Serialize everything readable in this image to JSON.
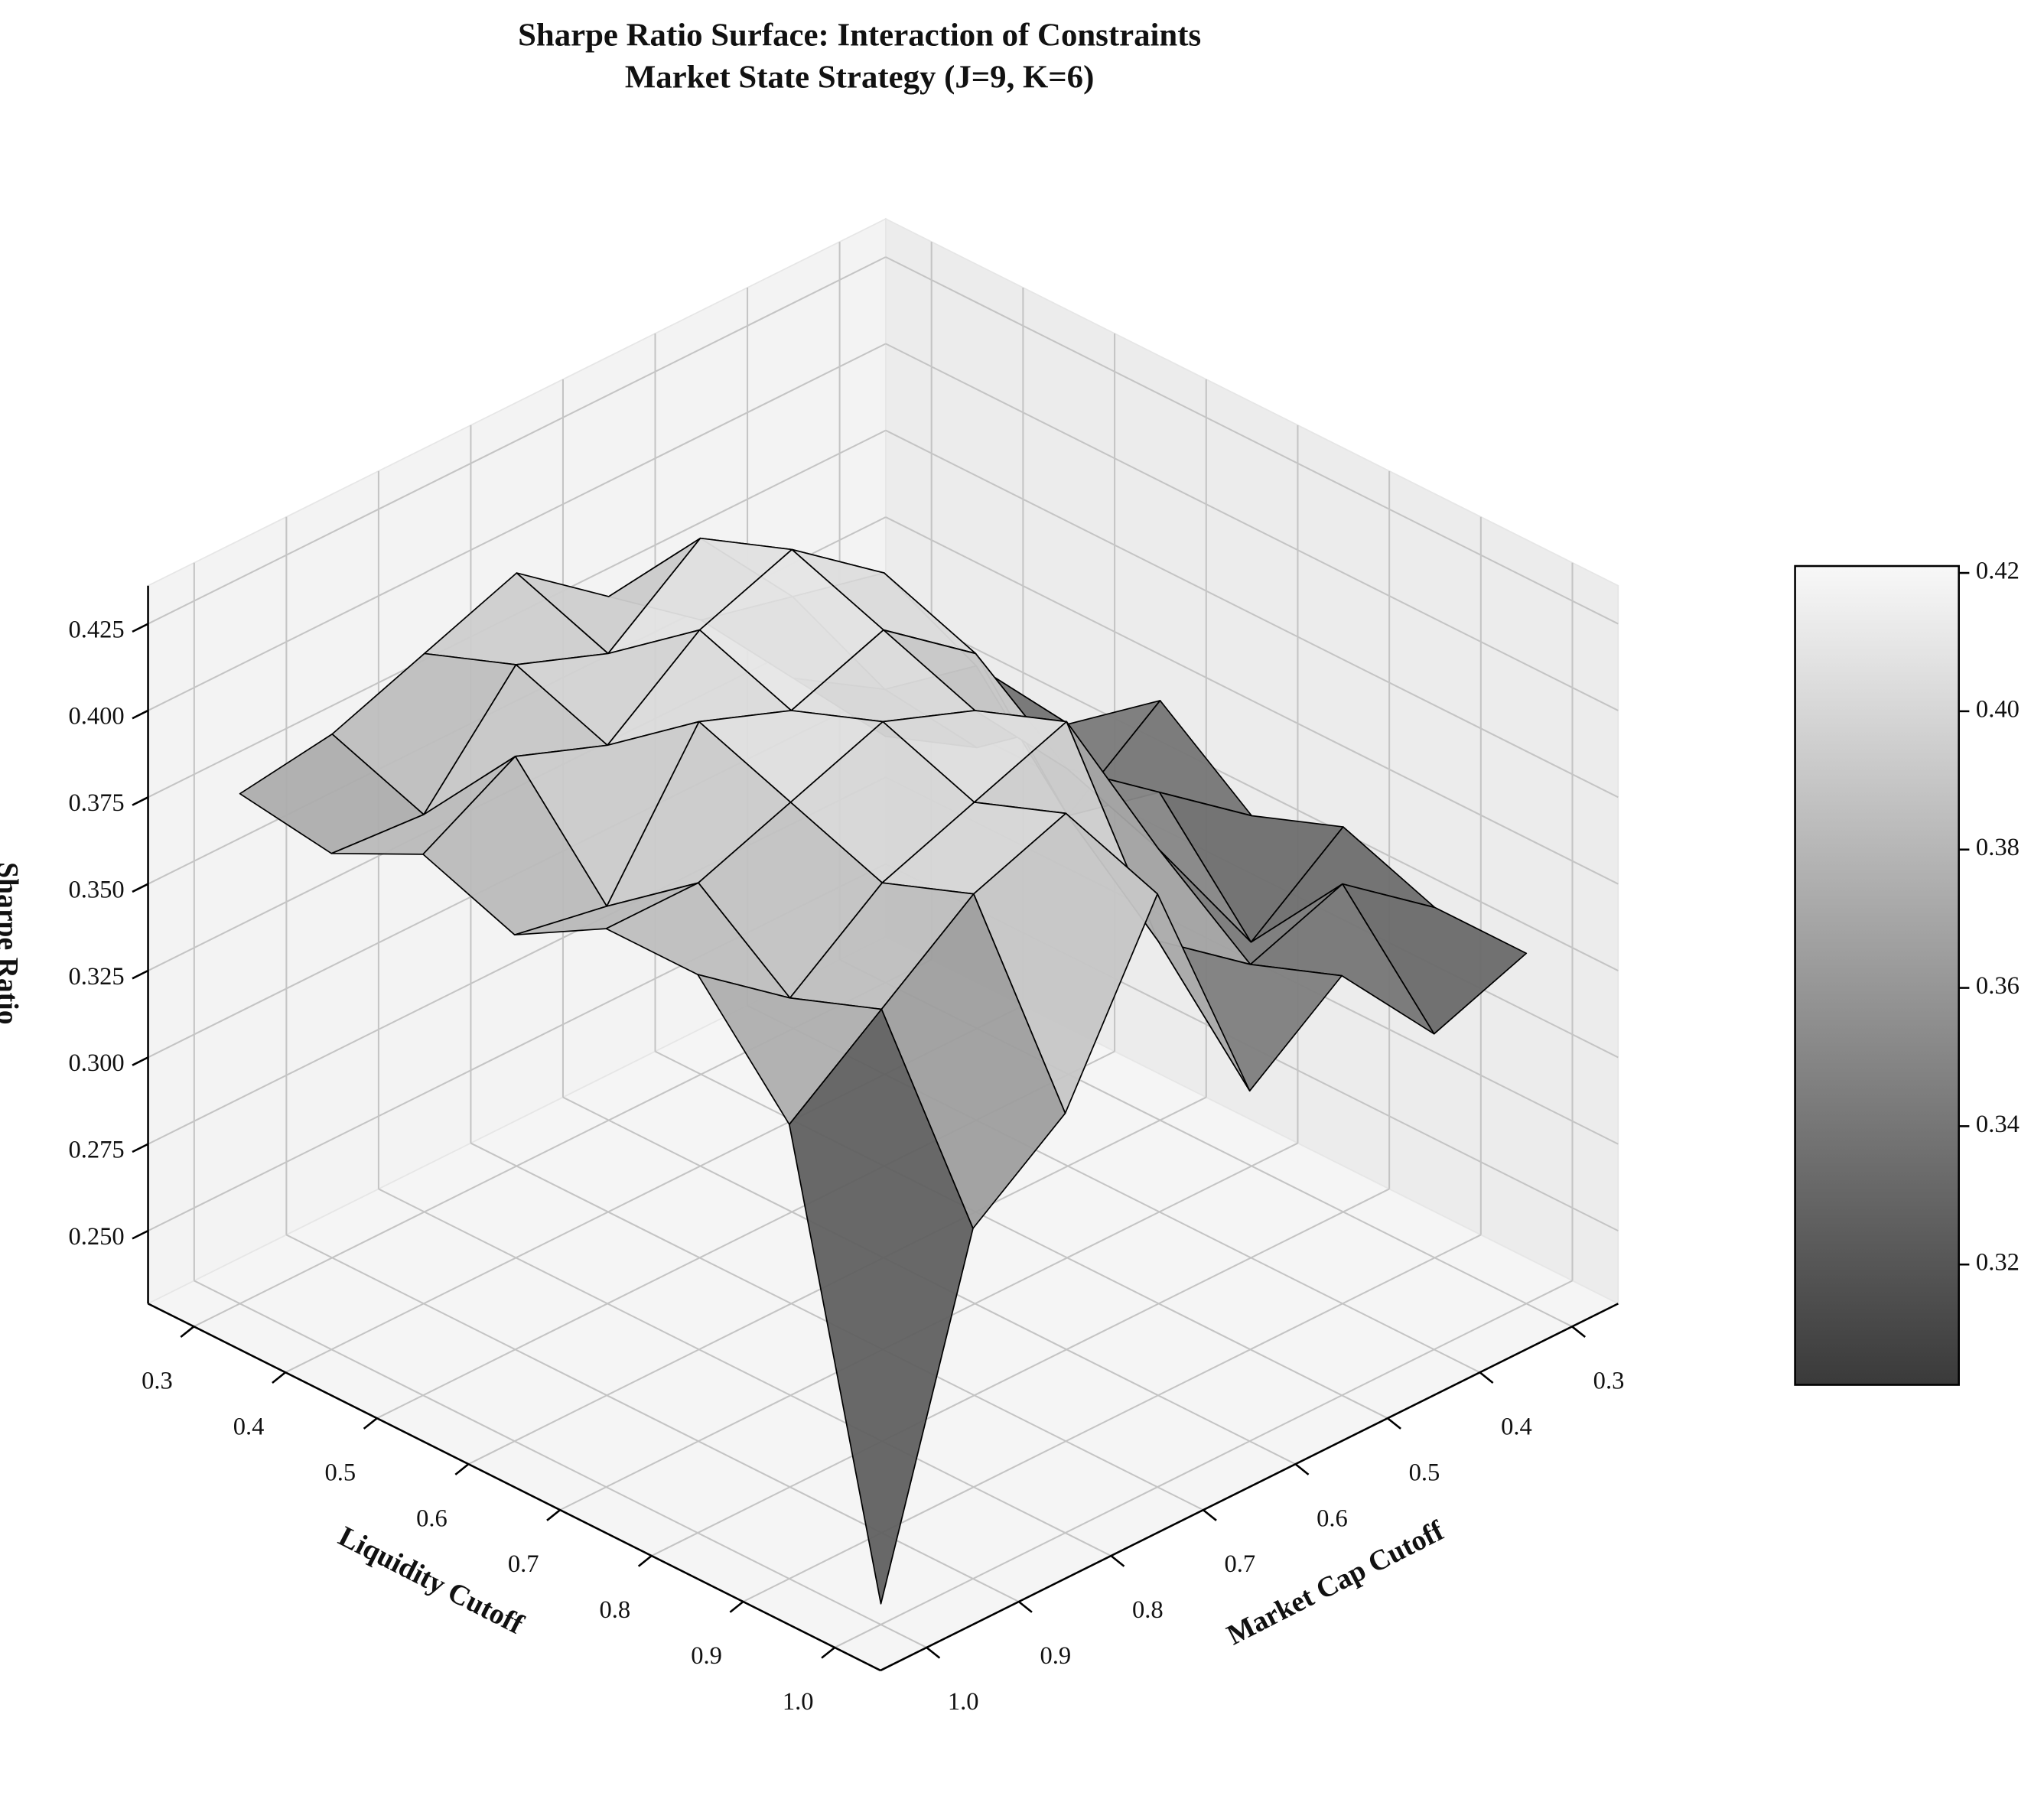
{
  "chart_data": {
    "type": "surface",
    "title": "Sharpe Ratio Surface: Interaction of Constraints",
    "subtitle": "Market State Strategy (J=9, K=6)",
    "x_label": "Market Cap Cutoff",
    "y_label": "Liquidity Cutoff",
    "z_label": "Sharpe Ratio",
    "x": [
      0.3,
      0.4,
      0.5,
      0.6,
      0.7,
      0.8,
      0.9,
      1.0
    ],
    "y": [
      0.3,
      0.4,
      0.5,
      0.6,
      0.7,
      0.8,
      0.9,
      1.0
    ],
    "z": [
      [
        0.3,
        0.33,
        0.36,
        0.38,
        0.4,
        0.39,
        0.38,
        0.376
      ],
      [
        0.31,
        0.34,
        0.38,
        0.41,
        0.39,
        0.4,
        0.37,
        0.372
      ],
      [
        0.33,
        0.36,
        0.4,
        0.42,
        0.41,
        0.39,
        0.4,
        0.385
      ],
      [
        0.35,
        0.33,
        0.39,
        0.41,
        0.4,
        0.41,
        0.37,
        0.375
      ],
      [
        0.33,
        0.35,
        0.37,
        0.4,
        0.41,
        0.4,
        0.39,
        0.39
      ],
      [
        0.34,
        0.32,
        0.36,
        0.41,
        0.4,
        0.39,
        0.37,
        0.39
      ],
      [
        0.33,
        0.35,
        0.34,
        0.36,
        0.41,
        0.4,
        0.38,
        0.36
      ],
      [
        0.33,
        0.32,
        0.35,
        0.33,
        0.4,
        0.35,
        0.33,
        0.235
      ]
    ],
    "xlim": [
      0.25,
      1.05
    ],
    "ylim": [
      0.25,
      1.05
    ],
    "zlim": [
      0.229,
      0.436
    ],
    "xticks": [
      0.3,
      0.4,
      0.5,
      0.6,
      0.7,
      0.8,
      0.9,
      {
        "value": 1,
        "label": "1.0"
      }
    ],
    "yticks": [
      0.3,
      0.4,
      0.5,
      0.6,
      0.7,
      0.8,
      0.9,
      {
        "value": 1,
        "label": "1.0"
      }
    ],
    "zticks": [
      {
        "value": 0.25,
        "label": "0.250"
      },
      {
        "value": 0.275,
        "label": "0.275"
      },
      {
        "value": 0.3,
        "label": "0.300"
      },
      {
        "value": 0.325,
        "label": "0.325"
      },
      {
        "value": 0.35,
        "label": "0.350"
      },
      {
        "value": 0.375,
        "label": "0.375"
      },
      {
        "value": 0.4,
        "label": "0.400"
      },
      {
        "value": 0.425,
        "label": "0.425"
      }
    ],
    "colormap": [
      "#3a3a3a",
      "#f8f8f8"
    ],
    "clim": [
      0.3026,
      0.421
    ],
    "cticks": [
      0.32,
      0.34,
      0.36,
      0.38,
      {
        "value": 0.4,
        "label": "0.40"
      },
      0.42
    ],
    "grid": true
  }
}
